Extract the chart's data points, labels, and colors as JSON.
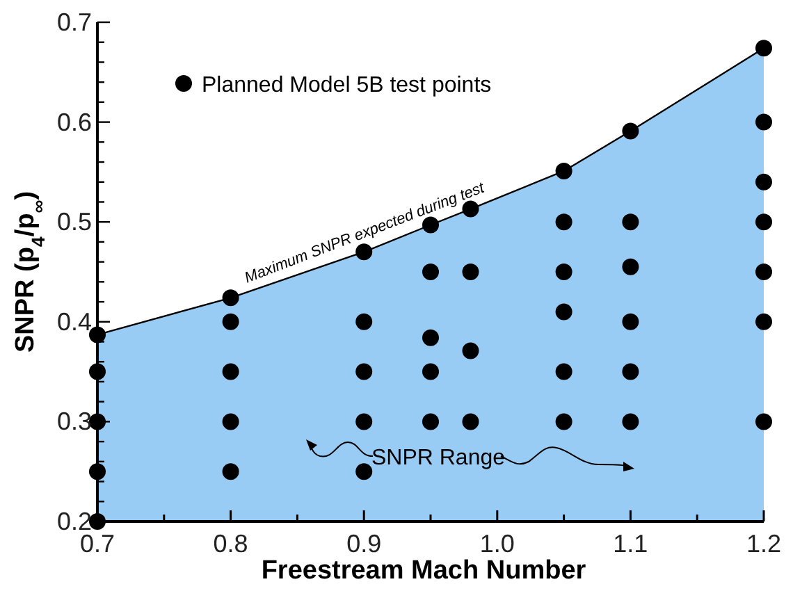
{
  "chart_data": {
    "type": "area",
    "xlabel": "Freestream Mach Number",
    "ylabel": "SNPR (p$_{4}$/p$_{∞}$)",
    "xlim": [
      0.7,
      1.2
    ],
    "ylim": [
      0.2,
      0.7
    ],
    "xticks": [
      0.7,
      {
        "value": 0.75,
        "label": null
      },
      0.8,
      {
        "value": 0.85,
        "label": null
      },
      0.9,
      {
        "value": 0.95,
        "label": null
      },
      {
        "value": 1.0,
        "label": "1.0"
      },
      {
        "value": 1.05,
        "label": null
      },
      1.1,
      {
        "value": 1.15,
        "label": null
      },
      1.2
    ],
    "yticks": [
      0.2,
      {
        "value": 0.22,
        "label": null
      },
      {
        "value": 0.24,
        "label": null
      },
      {
        "value": 0.26,
        "label": null
      },
      {
        "value": 0.28,
        "label": null
      },
      0.3,
      {
        "value": 0.32,
        "label": null
      },
      {
        "value": 0.34,
        "label": null
      },
      {
        "value": 0.36,
        "label": null
      },
      {
        "value": 0.38,
        "label": null
      },
      0.4,
      {
        "value": 0.42,
        "label": null
      },
      {
        "value": 0.44,
        "label": null
      },
      {
        "value": 0.46,
        "label": null
      },
      {
        "value": 0.48,
        "label": null
      },
      0.5,
      {
        "value": 0.52,
        "label": null
      },
      {
        "value": 0.54,
        "label": null
      },
      {
        "value": 0.56,
        "label": null
      },
      {
        "value": 0.58,
        "label": null
      },
      0.6,
      {
        "value": 0.62,
        "label": null
      },
      {
        "value": 0.64,
        "label": null
      },
      {
        "value": 0.66,
        "label": null
      },
      {
        "value": 0.68,
        "label": null
      },
      0.7
    ],
    "grid": false,
    "legend": "top left",
    "series": [
      {
        "color": "#99ccf5",
        "x": [
          0.7,
          0.8,
          0.9,
          0.95,
          0.98,
          1.05,
          1.1,
          1.2
        ],
        "values": [
          0.387,
          0.424,
          0.47,
          0.497,
          0.513,
          0.551,
          0.591,
          0.674
        ]
      },
      {
        "type": "scatter",
        "marker": "circle",
        "name": "Planned Model 5B test points",
        "color": "#000000",
        "x": [
          0.7,
          0.7,
          0.7,
          0.7,
          0.7,
          0.8,
          0.8,
          0.8,
          0.8,
          0.8,
          0.9,
          0.9,
          0.9,
          0.9,
          0.9,
          0.95,
          0.95,
          0.95,
          0.95,
          0.95,
          0.98,
          0.98,
          0.98,
          0.98,
          1.05,
          1.05,
          1.05,
          1.05,
          1.05,
          1.05,
          1.1,
          1.1,
          1.1,
          1.1,
          1.1,
          1.1,
          1.2,
          1.2,
          1.2,
          1.2,
          1.2,
          1.2,
          1.2
        ],
        "values": [
          0.387,
          0.35,
          0.3,
          0.25,
          0.2,
          0.424,
          0.4,
          0.35,
          0.3,
          0.25,
          0.47,
          0.4,
          0.35,
          0.3,
          0.25,
          0.497,
          0.45,
          0.384,
          0.35,
          0.3,
          0.513,
          0.45,
          0.371,
          0.3,
          0.551,
          0.5,
          0.45,
          0.41,
          0.35,
          0.3,
          0.591,
          0.5,
          0.455,
          0.4,
          0.35,
          0.3,
          0.674,
          0.6,
          0.54,
          0.5,
          0.45,
          0.4,
          0.3
        ]
      }
    ],
    "annotations": [
      {
        "text": "Maximum SNPR expected during test",
        "x": 0.905,
        "y": 0.473
      },
      "SNPR Range"
    ]
  }
}
